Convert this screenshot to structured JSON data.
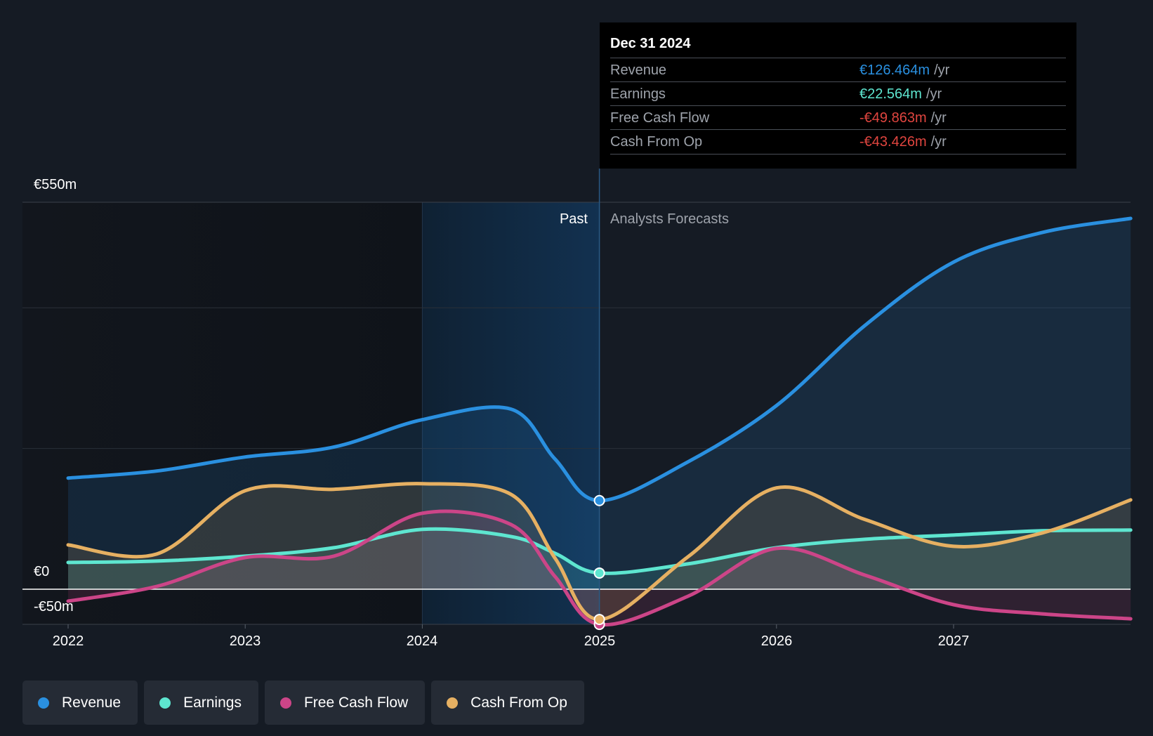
{
  "chart_data": {
    "type": "area",
    "currency": "€",
    "y_unit": "m",
    "ylim": [
      -50,
      550
    ],
    "ytick_labels": [
      "€550m",
      "€0",
      "-€50m"
    ],
    "x_ticks": [
      2022,
      2023,
      2024,
      2025,
      2026,
      2027
    ],
    "xlim": [
      2022,
      2028
    ],
    "past_label": "Past",
    "forecast_label": "Analysts Forecasts",
    "past_end": 2025,
    "highlight_start": 2024,
    "series": [
      {
        "name": "Revenue",
        "color": "#2a90e0",
        "points": [
          [
            2022.0,
            158
          ],
          [
            2022.5,
            168
          ],
          [
            2023.0,
            188
          ],
          [
            2023.5,
            202
          ],
          [
            2024.0,
            241
          ],
          [
            2024.5,
            256
          ],
          [
            2024.75,
            185
          ],
          [
            2025.0,
            126
          ],
          [
            2025.5,
            181
          ],
          [
            2026.0,
            261
          ],
          [
            2026.5,
            375
          ],
          [
            2027.0,
            465
          ],
          [
            2027.5,
            507
          ],
          [
            2028.0,
            527
          ]
        ]
      },
      {
        "name": "Earnings",
        "color": "#5ee6d0",
        "points": [
          [
            2022.0,
            38
          ],
          [
            2022.5,
            40
          ],
          [
            2023.0,
            47
          ],
          [
            2023.5,
            59
          ],
          [
            2024.0,
            85
          ],
          [
            2024.5,
            75
          ],
          [
            2024.75,
            51
          ],
          [
            2025.0,
            23
          ],
          [
            2025.5,
            36
          ],
          [
            2026.0,
            59
          ],
          [
            2026.5,
            71
          ],
          [
            2027.0,
            77
          ],
          [
            2027.5,
            83
          ],
          [
            2028.0,
            84
          ]
        ]
      },
      {
        "name": "Free Cash Flow",
        "color": "#cc4588",
        "points": [
          [
            2022.0,
            -17
          ],
          [
            2022.5,
            4
          ],
          [
            2023.0,
            45
          ],
          [
            2023.5,
            47
          ],
          [
            2024.0,
            108
          ],
          [
            2024.5,
            92
          ],
          [
            2024.75,
            18
          ],
          [
            2025.0,
            -50
          ],
          [
            2025.5,
            -10
          ],
          [
            2026.0,
            58
          ],
          [
            2026.5,
            20
          ],
          [
            2027.0,
            -22
          ],
          [
            2027.5,
            -35
          ],
          [
            2028.0,
            -42
          ]
        ]
      },
      {
        "name": "Cash From Op",
        "color": "#e6b062",
        "points": [
          [
            2022.0,
            63
          ],
          [
            2022.5,
            50
          ],
          [
            2023.0,
            140
          ],
          [
            2023.5,
            142
          ],
          [
            2024.0,
            150
          ],
          [
            2024.5,
            135
          ],
          [
            2024.75,
            44
          ],
          [
            2025.0,
            -43
          ],
          [
            2025.5,
            46
          ],
          [
            2026.0,
            144
          ],
          [
            2026.5,
            99
          ],
          [
            2027.0,
            61
          ],
          [
            2027.5,
            80
          ],
          [
            2028.0,
            127
          ]
        ]
      }
    ]
  },
  "tooltip": {
    "title": "Dec 31 2024",
    "unit": "/yr",
    "rows": [
      {
        "label": "Revenue",
        "value": "€126.464m",
        "color": "#2a90e0"
      },
      {
        "label": "Earnings",
        "value": "€22.564m",
        "color": "#5ee6d0"
      },
      {
        "label": "Free Cash Flow",
        "value": "-€49.863m",
        "color": "#e0453f"
      },
      {
        "label": "Cash From Op",
        "value": "-€43.426m",
        "color": "#e0453f"
      }
    ]
  },
  "legend": [
    {
      "label": "Revenue",
      "color": "#2a90e0"
    },
    {
      "label": "Earnings",
      "color": "#5ee6d0"
    },
    {
      "label": "Free Cash Flow",
      "color": "#cc4588"
    },
    {
      "label": "Cash From Op",
      "color": "#e6b062"
    }
  ]
}
